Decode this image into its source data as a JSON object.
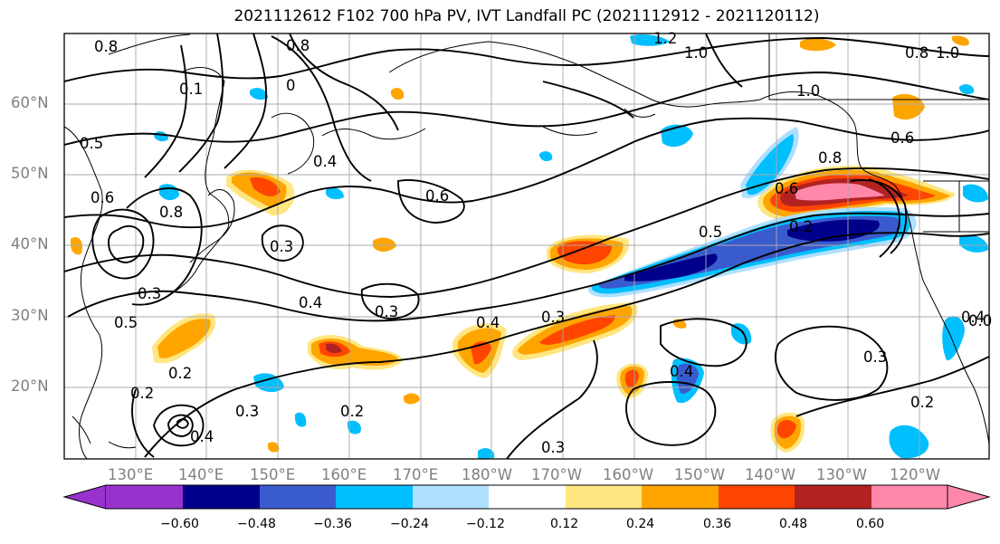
{
  "title": "2021112612 F102 700 hPa PV, IVT Landfall PC (2021112912 - 2021120112)",
  "lat_labels": [
    "60°N",
    "50°N",
    "40°N",
    "30°N",
    "20°N"
  ],
  "lon_labels": [
    "130°E",
    "140°E",
    "150°E",
    "160°E",
    "170°E",
    "180°W",
    "170°W",
    "160°W",
    "150°W",
    "140°W",
    "130°W",
    "120°W"
  ],
  "colorbar": {
    "ticks": [
      "−0.60",
      "−0.48",
      "−0.36",
      "−0.24",
      "−0.12",
      "0.12",
      "0.24",
      "0.36",
      "0.48",
      "0.60"
    ],
    "colors": [
      "#9932cc",
      "#00008b",
      "#3a5bcd",
      "#00bfff",
      "#b0e0ff",
      "#ffffff",
      "#ffe680",
      "#ffa500",
      "#ff4500",
      "#b22222",
      "#ff88aa"
    ]
  },
  "contour_labels": [
    "0.8",
    "1.2",
    "1.0",
    "1.0",
    "0.8",
    "1.0",
    "0.1",
    "0",
    "0.8",
    "0.5",
    "0.6",
    "0.4",
    "0.6",
    "0.8",
    "0.6",
    "0.8",
    "0.6",
    "0.3",
    "0.5",
    "0.2",
    "0.2",
    "0.4",
    "0.3",
    "0.4",
    "0.3",
    "0.4",
    "0.5",
    "0.3",
    "0.2",
    "0.2",
    "0.3",
    "0.3",
    "0.4",
    "0.2",
    "0.3",
    "0.4",
    "0.0"
  ]
}
